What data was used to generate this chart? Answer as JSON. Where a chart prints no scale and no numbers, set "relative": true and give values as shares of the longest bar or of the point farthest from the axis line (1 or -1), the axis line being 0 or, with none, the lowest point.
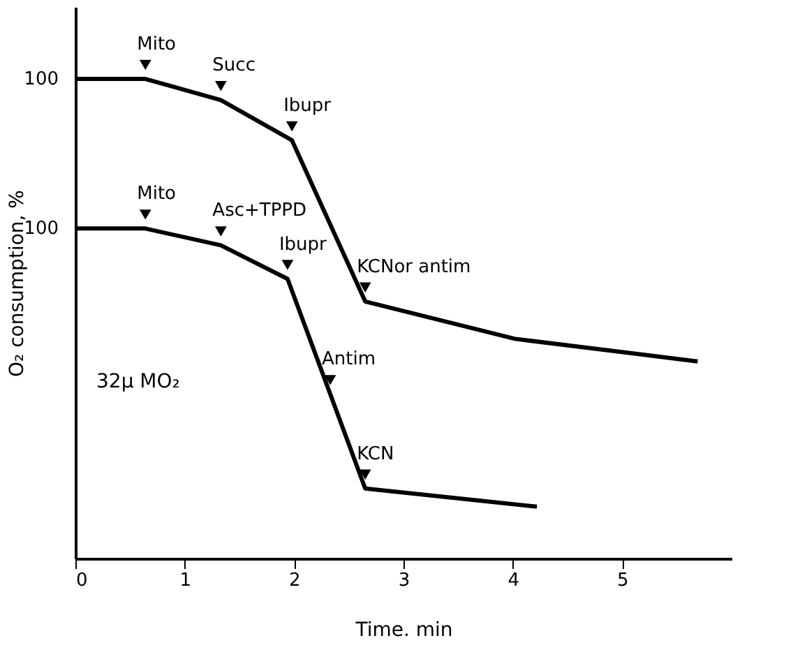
{
  "chart_data": {
    "type": "line",
    "relative": true,
    "xlabel": "Time. min",
    "ylabel": "O₂ consumption, %",
    "xlim": [
      0,
      6
    ],
    "xticks": [
      0,
      1,
      2,
      3,
      4,
      5
    ],
    "grid": false,
    "legend": false,
    "marker": "none",
    "line_style": "solid",
    "tick_labels": "x",
    "series": [
      {
        "color": "#000000",
        "x": [
          0,
          0.64,
          1.33,
          1.98,
          2.65,
          4.02,
          5.69
        ],
        "values": [
          1,
          1,
          0.956,
          0.872,
          0.536,
          0.458,
          0.411
        ]
      },
      {
        "color": "#000000",
        "x": [
          0,
          0.64,
          1.33,
          1.94,
          2.65,
          4.22
        ],
        "values": [
          0.688,
          0.688,
          0.653,
          0.583,
          0.146,
          0.108
        ]
      }
    ],
    "annotations": [
      {
        "text": "100",
        "x": 0,
        "y": 1
      },
      {
        "text": "100",
        "x": 0,
        "y": 0.688
      },
      {
        "text": "Mito",
        "x": 0.64,
        "y": 1
      },
      {
        "text": "Succ",
        "x": 1.33,
        "y": 0.956
      },
      {
        "text": "Ibupr",
        "x": 1.98,
        "y": 0.872
      },
      {
        "text": "KCNor antim",
        "x": 2.65,
        "y": 0.536
      },
      {
        "text": "Mito",
        "x": 0.64,
        "y": 0.688
      },
      {
        "text": "Asc+TPPD",
        "x": 1.33,
        "y": 0.653
      },
      {
        "text": "Ibupr",
        "x": 1.94,
        "y": 0.583
      },
      {
        "text": "Antim",
        "x": 2.33,
        "y": 0.343
      },
      {
        "text": "KCN",
        "x": 2.65,
        "y": 0.146
      },
      "32μ MO₂"
    ]
  }
}
